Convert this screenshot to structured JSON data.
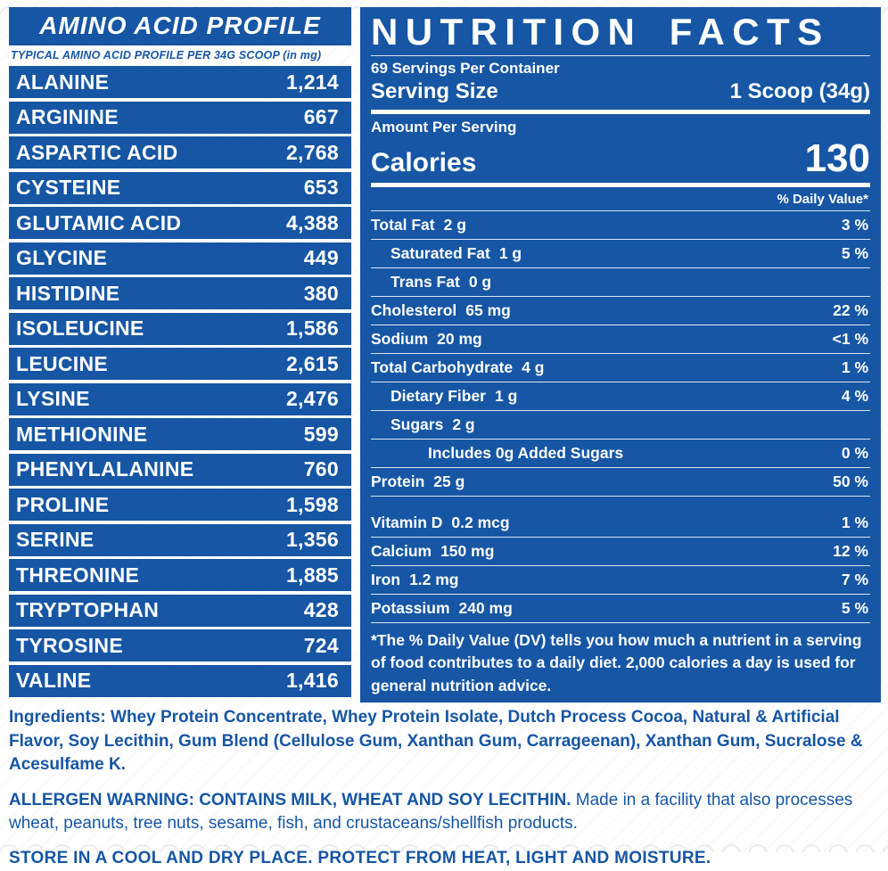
{
  "colors": {
    "blue": "#1656a4",
    "white": "#ffffff"
  },
  "amino_panel": {
    "title": "AMINO ACID PROFILE",
    "subtitle": "TYPICAL AMINO ACID PROFILE PER 34G SCOOP (in mg)",
    "rows": [
      {
        "name": "ALANINE",
        "value": "1,214"
      },
      {
        "name": "ARGININE",
        "value": "667"
      },
      {
        "name": "ASPARTIC ACID",
        "value": "2,768"
      },
      {
        "name": "CYSTEINE",
        "value": "653"
      },
      {
        "name": "GLUTAMIC ACID",
        "value": "4,388"
      },
      {
        "name": "GLYCINE",
        "value": "449"
      },
      {
        "name": "HISTIDINE",
        "value": "380"
      },
      {
        "name": "ISOLEUCINE",
        "value": "1,586"
      },
      {
        "name": "LEUCINE",
        "value": "2,615"
      },
      {
        "name": "LYSINE",
        "value": "2,476"
      },
      {
        "name": "METHIONINE",
        "value": "599"
      },
      {
        "name": "PHENYLALANINE",
        "value": "760"
      },
      {
        "name": "PROLINE",
        "value": "1,598"
      },
      {
        "name": "SERINE",
        "value": "1,356"
      },
      {
        "name": "THREONINE",
        "value": "1,885"
      },
      {
        "name": "TRYPTOPHAN",
        "value": "428"
      },
      {
        "name": "TYROSINE",
        "value": "724"
      },
      {
        "name": "VALINE",
        "value": "1,416"
      }
    ]
  },
  "nutrition_panel": {
    "title": "NUTRITION FACTS",
    "servings_per_container": "69 Servings Per Container",
    "serving_size_label": "Serving Size",
    "serving_size_value": "1 Scoop (34g)",
    "amount_per_serving": "Amount Per Serving",
    "calories_label": "Calories",
    "calories_value": "130",
    "daily_value_header": "% Daily Value*",
    "rows": [
      {
        "label": "Total Fat",
        "amount": "2 g",
        "dv": "3 %"
      },
      {
        "label": "Saturated Fat",
        "amount": "1 g",
        "dv": "5 %",
        "cls": "indent1"
      },
      {
        "label": "Trans Fat",
        "amount": "0 g",
        "dv": "",
        "cls": "indent1"
      },
      {
        "label": "Cholesterol",
        "amount": "65 mg",
        "dv": "22 %"
      },
      {
        "label": "Sodium",
        "amount": "20 mg",
        "dv": "<1 %"
      },
      {
        "label": "Total Carbohydrate",
        "amount": "4 g",
        "dv": "1 %"
      },
      {
        "label": "Dietary Fiber",
        "amount": "1 g",
        "dv": "4 %",
        "cls": "indent1"
      },
      {
        "label": "Sugars",
        "amount": "2 g",
        "dv": "",
        "cls": "indent1"
      },
      {
        "label": "Includes 0g Added Sugars",
        "amount": "",
        "dv": "0 %",
        "cls": "indent2"
      },
      {
        "label": "Protein",
        "amount": "25 g",
        "dv": "50 %"
      }
    ],
    "vitamins": [
      {
        "label": "Vitamin D",
        "amount": "0.2 mcg",
        "dv": "1 %"
      },
      {
        "label": "Calcium",
        "amount": "150 mg",
        "dv": "12 %"
      },
      {
        "label": "Iron",
        "amount": "1.2 mg",
        "dv": "7 %"
      },
      {
        "label": "Potassium",
        "amount": "240 mg",
        "dv": "5 %"
      }
    ],
    "footnote": "*The % Daily Value (DV) tells you how much a nutrient in a serving of food contributes to a daily diet. 2,000 calories a day is used for general nutrition advice."
  },
  "footer": {
    "ingredients_label": "Ingredients:",
    "ingredients_text": "Whey Protein Concentrate, Whey Protein Isolate, Dutch Process Cocoa, Natural & Artificial Flavor, Soy Lecithin, Gum Blend (Cellulose Gum, Xanthan Gum, Carrageenan), Xanthan Gum, Sucralose & Acesulfame K.",
    "allergen_bold": "ALLERGEN WARNING: CONTAINS MILK, WHEAT AND SOY LECITHIN.",
    "allergen_rest": "Made in a facility that also processes wheat, peanuts, tree nuts, sesame, fish, and crustaceans/shellfish products.",
    "storage": "STORE IN A COOL AND DRY PLACE. PROTECT FROM HEAT, LIGHT AND MOISTURE."
  }
}
